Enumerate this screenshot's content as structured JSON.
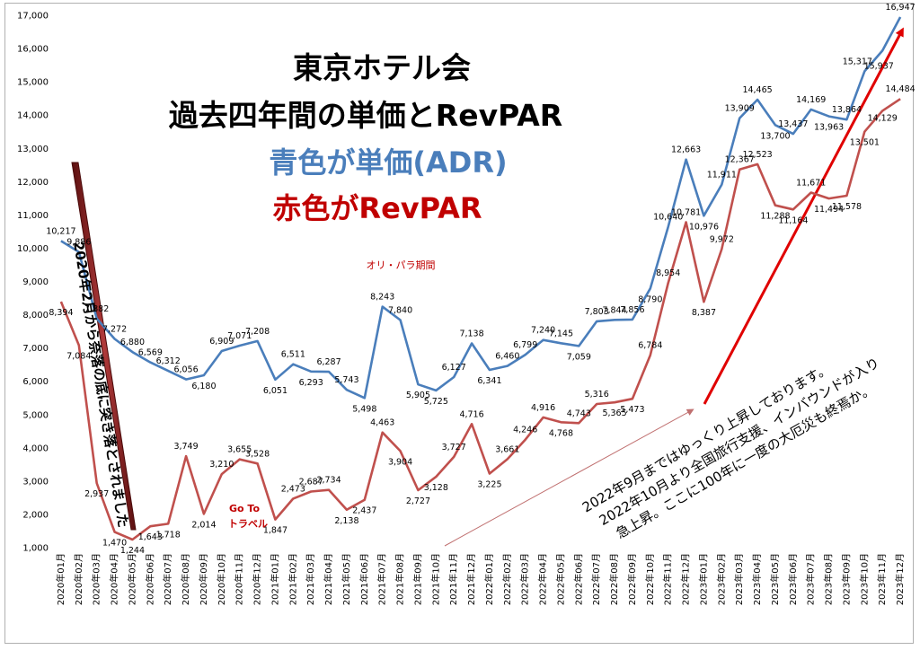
{
  "chart_data": {
    "type": "line",
    "title_lines": [
      "東京ホテル会",
      "過去四年間の単価とRevPAR"
    ],
    "legend_lines": [
      {
        "text": "青色が単価(ADR)",
        "color": "#4a7ebb"
      },
      {
        "text": "赤色がRevPAR",
        "color": "#c00000"
      }
    ],
    "x": [
      "2020年01月",
      "2020年02月",
      "2020年03月",
      "2020年04月",
      "2020年05月",
      "2020年06月",
      "2020年07月",
      "2020年08月",
      "2020年09月",
      "2020年10月",
      "2020年11月",
      "2020年12月",
      "2021年01月",
      "2021年02月",
      "2021年03月",
      "2021年04月",
      "2021年05月",
      "2021年06月",
      "2021年07月",
      "2021年08月",
      "2021年09月",
      "2021年10月",
      "2021年11月",
      "2021年12月",
      "2022年01月",
      "2022年02月",
      "2022年03月",
      "2022年04月",
      "2022年05月",
      "2022年06月",
      "2022年07月",
      "2022年08月",
      "2022年09月",
      "2022年10月",
      "2022年11月",
      "2022年12月",
      "2023年01月",
      "2023年02月",
      "2023年03月",
      "2023年04月",
      "2023年05月",
      "2023年06月",
      "2023年07月",
      "2023年08月",
      "2023年09月",
      "2023年10月",
      "2023年11月",
      "2023年12月"
    ],
    "ylim": [
      1000,
      17000
    ],
    "yticks": [
      "1,000",
      "2,000",
      "3,000",
      "4,000",
      "5,000",
      "6,000",
      "7,000",
      "8,000",
      "9,000",
      "10,000",
      "11,000",
      "12,000",
      "13,000",
      "14,000",
      "15,000",
      "16,000",
      "17,000"
    ],
    "series": [
      {
        "color": "#4a7ebb",
        "values": [
          10217,
          9886,
          7882,
          7272,
          6880,
          6569,
          6312,
          6056,
          6180,
          6909,
          7071,
          7208,
          6051,
          6511,
          6293,
          6287,
          5743,
          5498,
          8243,
          7840,
          5905,
          5725,
          6127,
          7138,
          6341,
          6460,
          6799,
          7240,
          7145,
          7059,
          7803,
          7844,
          7856,
          8790,
          10640,
          12663,
          10976,
          11911,
          13909,
          14465,
          13700,
          13437,
          14169,
          13963,
          13864,
          15317,
          15937,
          16947
        ],
        "labels": [
          "10,217",
          "9,886",
          "7,882",
          "7,272",
          "6,880",
          "6,569",
          "6,312",
          "6,056",
          "6,180",
          "6,909",
          "7,071",
          "7,208",
          "6,051",
          "6,511",
          "6,293",
          "6,287",
          "5,743",
          "5,498",
          "8,243",
          "7,840",
          "5,905",
          "5,725",
          "6,127",
          "7,138",
          "6,341",
          "6,460",
          "6,799",
          "7,240",
          "7,145",
          "7,059",
          "7,803",
          "7,844",
          "7,856",
          "8,790",
          "10,640",
          "12,663",
          "10,976",
          "11,911",
          "13,909",
          "14,465",
          "13,700",
          "13,437",
          "14,169",
          "13,963",
          "13,864",
          "15,317",
          "15,937",
          "16,947"
        ]
      },
      {
        "color": "#c0504d",
        "values": [
          8394,
          7084,
          2937,
          1470,
          1244,
          1643,
          1718,
          3749,
          2014,
          3210,
          3655,
          3528,
          1847,
          2473,
          2687,
          2734,
          2138,
          2437,
          4463,
          3904,
          2727,
          3128,
          3727,
          4716,
          3225,
          3661,
          4246,
          4916,
          4768,
          4743,
          5316,
          5365,
          5473,
          6784,
          8954,
          10781,
          8387,
          9972,
          12367,
          12523,
          11288,
          11164,
          11671,
          11494,
          11578,
          13501,
          14129,
          14484
        ],
        "labels": [
          "8,394",
          "7,084",
          "2,937",
          "1,470",
          "1,244",
          "1,643",
          "1,718",
          "3,749",
          "2,014",
          "3,210",
          "3,655",
          "3,528",
          "1,847",
          "2,473",
          "2,687",
          "2,734",
          "2,138",
          "2,437",
          "4,463",
          "3,904",
          "2,727",
          "3,128",
          "3,727",
          "4,716",
          "3,225",
          "3,661",
          "4,246",
          "4,916",
          "4,768",
          "4,743",
          "5,316",
          "5,365",
          "5,473",
          "6,784",
          "8,954",
          "10,781",
          "8,387",
          "9,972",
          "12,367",
          "12,523",
          "11,288",
          "11,164",
          "11,671",
          "11,494",
          "11,578",
          "13,501",
          "14,129",
          "14,484"
        ]
      }
    ],
    "annotations": {
      "olympics": "オリ・パラ期間",
      "goto_line1": "Go To",
      "goto_line2": "トラベル",
      "crash_note": "2020年2月から奈落の底に突き落とされました",
      "rise_note_1": "2022年9月まではゆっくり上昇しております。",
      "rise_note_2": "2022年10月より全国旅行支援、インバウンドが入り",
      "rise_note_3": "急上昇。ここに100年に一度の大厄災も終焉か。"
    },
    "colors": {
      "adr": "#4a7ebb",
      "revpar": "#c0504d",
      "accent_red": "#e00000",
      "brown": "#8b2020"
    }
  }
}
